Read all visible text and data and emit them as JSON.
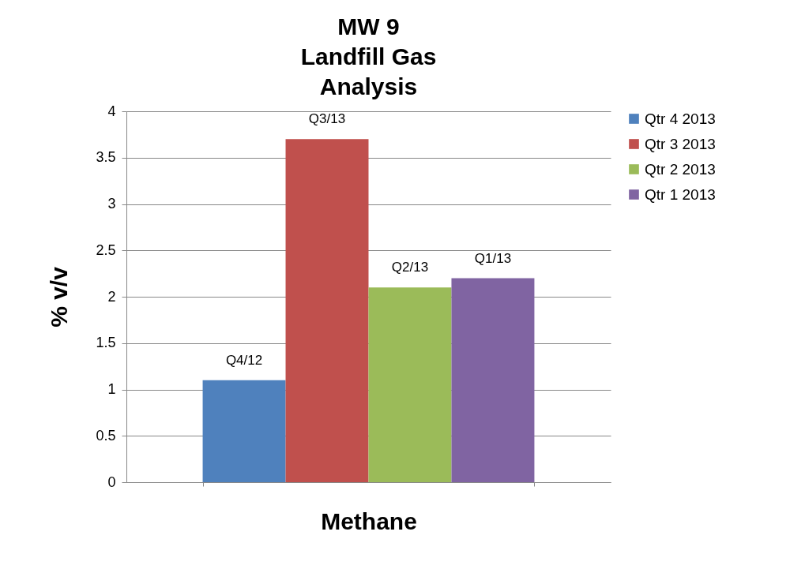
{
  "chart_data": {
    "type": "bar",
    "title": "MW 9\nLandfill Gas\nAnalysis",
    "xlabel": "Methane",
    "ylabel": "% v/v",
    "categories": [
      null
    ],
    "series": [
      {
        "name": "Qtr 4 2013",
        "color": "#4f81bd",
        "values": [
          1.1
        ],
        "value_labels": [
          "Q4/12"
        ]
      },
      {
        "name": "Qtr 3 2013",
        "color": "#c0504d",
        "values": [
          3.7
        ],
        "value_labels": [
          "Q3/13"
        ]
      },
      {
        "name": "Qtr 2 2013",
        "color": "#9bbb59",
        "values": [
          2.1
        ],
        "value_labels": [
          "Q2/13"
        ]
      },
      {
        "name": "Qtr 1 2013",
        "color": "#8064a2",
        "values": [
          2.2
        ],
        "value_labels": [
          "Q1/13"
        ]
      }
    ],
    "ylim": [
      0,
      4
    ],
    "yticks": [
      0,
      0.5,
      1,
      1.5,
      2,
      2.5,
      3,
      3.5,
      4
    ],
    "grid": "y",
    "legend": "right"
  }
}
